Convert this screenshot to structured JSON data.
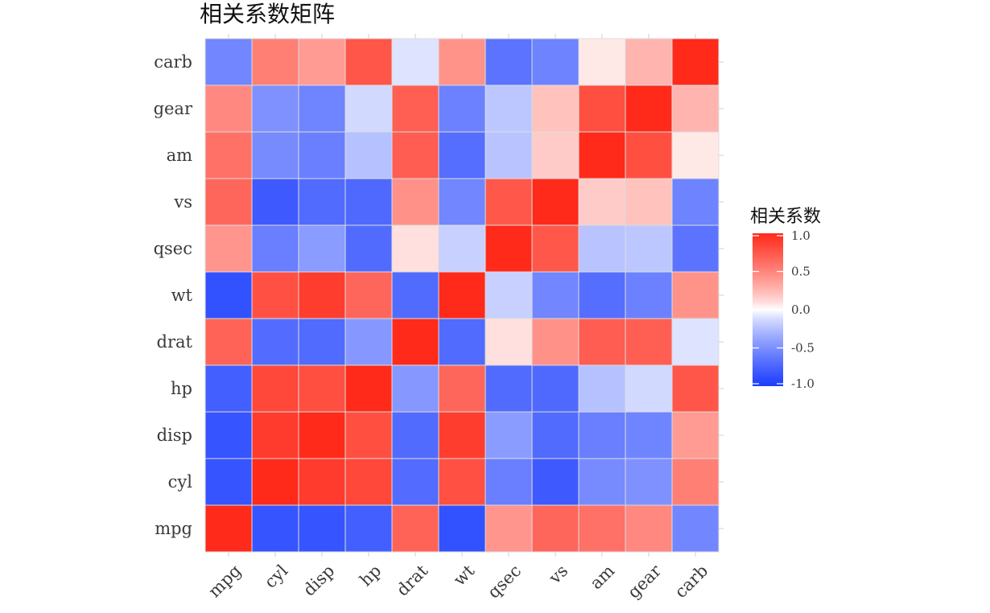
{
  "chart_data": {
    "type": "heatmap",
    "title": "相关系数矩阵",
    "xlabel": "",
    "ylabel": "",
    "x_categories": [
      "mpg",
      "cyl",
      "disp",
      "hp",
      "drat",
      "wt",
      "qsec",
      "vs",
      "am",
      "gear",
      "carb"
    ],
    "y_categories": [
      "mpg",
      "cyl",
      "disp",
      "hp",
      "drat",
      "wt",
      "qsec",
      "vs",
      "am",
      "gear",
      "carb"
    ],
    "values": [
      [
        1.0,
        -0.85,
        -0.85,
        -0.78,
        0.68,
        -0.87,
        0.42,
        0.66,
        0.6,
        0.48,
        -0.55
      ],
      [
        -0.85,
        1.0,
        0.9,
        0.83,
        -0.7,
        0.78,
        -0.59,
        -0.81,
        -0.52,
        -0.49,
        0.53
      ],
      [
        -0.85,
        0.9,
        1.0,
        0.79,
        -0.71,
        0.89,
        -0.43,
        -0.71,
        -0.59,
        -0.56,
        0.39
      ],
      [
        -0.78,
        0.83,
        0.79,
        1.0,
        -0.45,
        0.66,
        -0.71,
        -0.72,
        -0.24,
        -0.13,
        0.75
      ],
      [
        0.68,
        -0.7,
        -0.71,
        -0.45,
        1.0,
        -0.71,
        0.09,
        0.44,
        0.71,
        0.7,
        -0.09
      ],
      [
        -0.87,
        0.78,
        0.89,
        0.66,
        -0.71,
        1.0,
        -0.17,
        -0.55,
        -0.69,
        -0.58,
        0.43
      ],
      [
        0.42,
        -0.59,
        -0.43,
        -0.71,
        0.09,
        -0.17,
        1.0,
        0.74,
        -0.23,
        -0.21,
        -0.66
      ],
      [
        0.66,
        -0.81,
        -0.71,
        -0.72,
        0.44,
        -0.55,
        0.74,
        1.0,
        0.17,
        0.21,
        -0.57
      ],
      [
        0.6,
        -0.52,
        -0.59,
        -0.24,
        0.71,
        -0.69,
        -0.23,
        0.17,
        1.0,
        0.79,
        0.06
      ],
      [
        0.48,
        -0.49,
        -0.56,
        -0.13,
        0.7,
        -0.58,
        -0.21,
        0.21,
        0.79,
        1.0,
        0.27
      ],
      [
        -0.55,
        0.53,
        0.39,
        0.75,
        -0.09,
        0.43,
        -0.66,
        -0.57,
        0.06,
        0.27,
        1.0
      ]
    ],
    "color_scale": {
      "low": "#1a3cff",
      "mid": "#ffffff",
      "high": "#ff2a1a",
      "limits": [
        -1.0,
        1.0
      ]
    },
    "legend": {
      "title": "相关系数",
      "placement": "right",
      "tick_values": [
        1.0,
        0.5,
        0.0,
        -0.5,
        -1.0
      ],
      "tick_labels": [
        "1.0",
        "0.5",
        "0.0",
        "-0.5",
        "-1.0"
      ]
    },
    "grid": false
  }
}
